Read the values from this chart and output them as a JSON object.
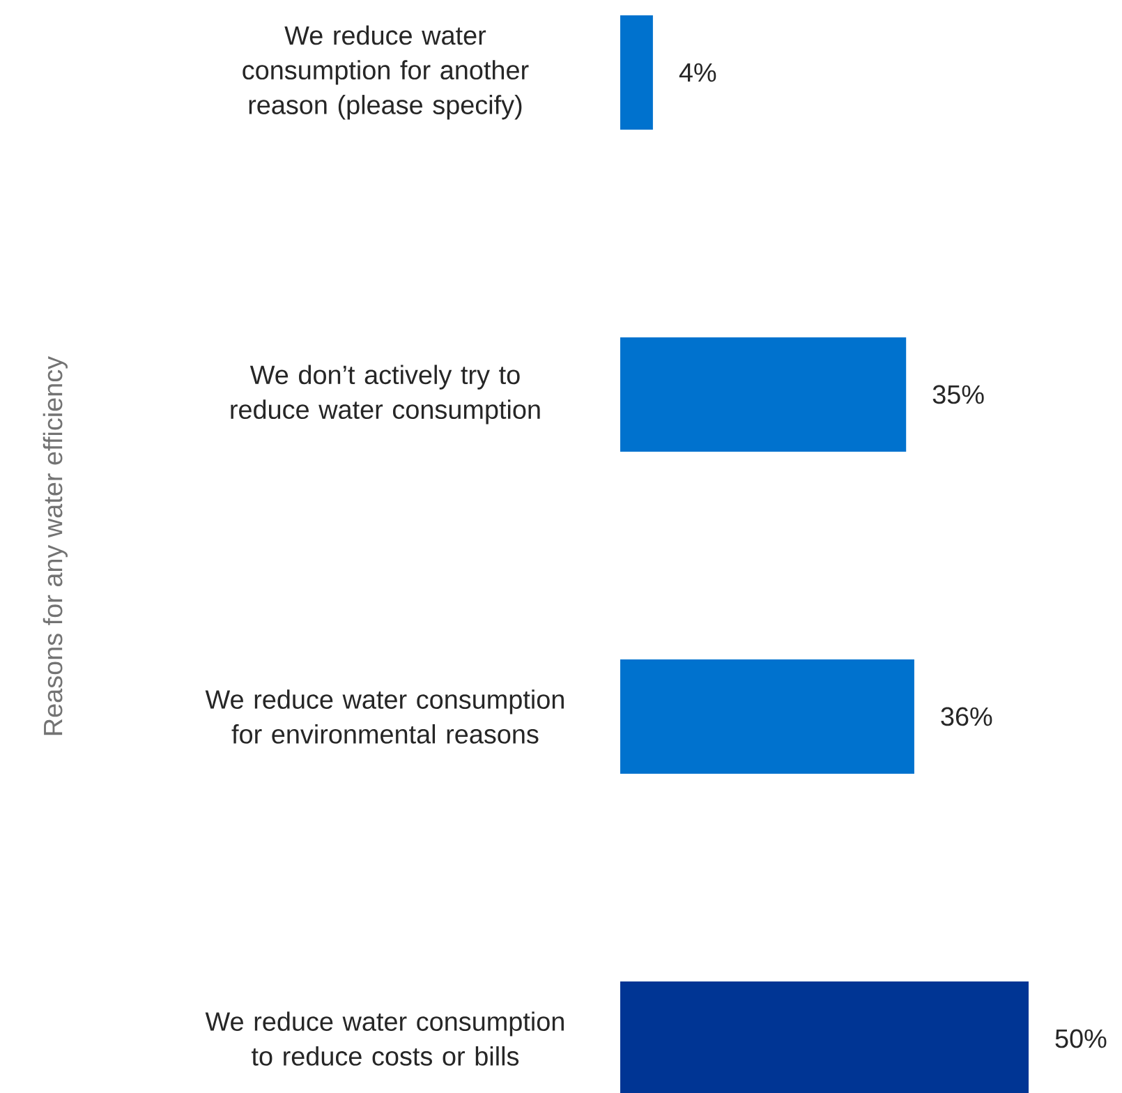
{
  "chart_data": {
    "type": "bar",
    "orientation": "horizontal",
    "annotations": [
      "Reasons for any water efficiency"
    ],
    "categories": [
      "We reduce water consumption for another reason (please specify)",
      "We don’t actively try to reduce water consumption",
      "We reduce water consumption for environmental reasons",
      "We reduce water consumption to reduce costs or bills"
    ],
    "values": [
      4,
      35,
      36,
      50
    ],
    "colors": [
      "#0072ce",
      "#0072ce",
      "#0072ce",
      "#003594"
    ],
    "value_labels": [
      "4%",
      "35%",
      "36%",
      "50%"
    ]
  }
}
